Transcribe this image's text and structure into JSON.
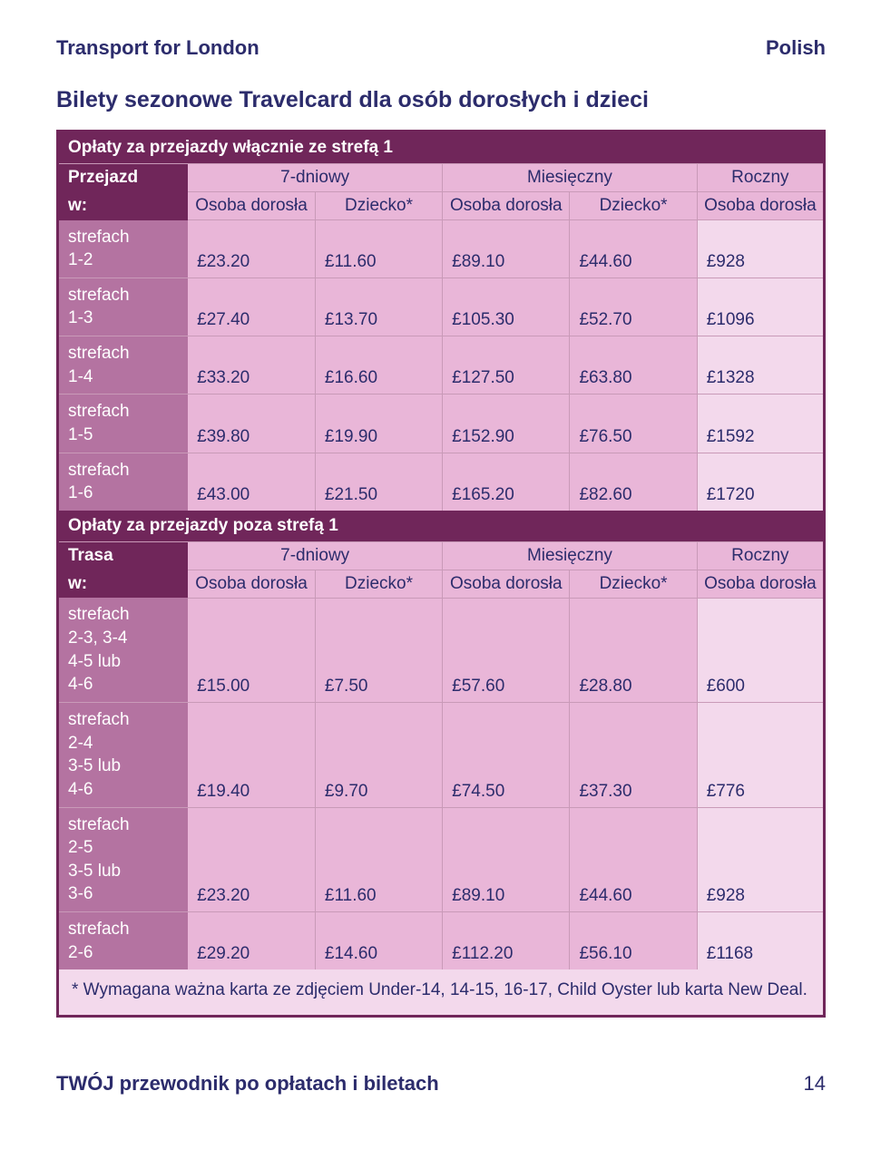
{
  "header": {
    "brand": "Transport for London",
    "lang": "Polish"
  },
  "title": "Bilety sezonowe Travelcard dla osób dorosłych i dzieci",
  "labels": {
    "zone_word": "strefach",
    "or_word": "lub"
  },
  "section1": {
    "banner": "Opłaty za przejazdy włącznie ze strefą 1",
    "rowhead1": "Przejazd",
    "rowhead2": "w:",
    "periods": [
      "7-dniowy",
      "Miesięczny",
      "Roczny"
    ],
    "subcols": [
      "Osoba dorosła",
      "Dziecko*",
      "Osoba dorosła",
      "Dziecko*",
      "Osoba dorosła"
    ],
    "rows": [
      {
        "zone": "1-2",
        "v": [
          "£23.20",
          "£11.60",
          "£89.10",
          "£44.60",
          "£928"
        ]
      },
      {
        "zone": "1-3",
        "v": [
          "£27.40",
          "£13.70",
          "£105.30",
          "£52.70",
          "£1096"
        ]
      },
      {
        "zone": "1-4",
        "v": [
          "£33.20",
          "£16.60",
          "£127.50",
          "£63.80",
          "£1328"
        ]
      },
      {
        "zone": "1-5",
        "v": [
          "£39.80",
          "£19.90",
          "£152.90",
          "£76.50",
          "£1592"
        ]
      },
      {
        "zone": "1-6",
        "v": [
          "£43.00",
          "£21.50",
          "£165.20",
          "£82.60",
          "£1720"
        ]
      }
    ]
  },
  "section2": {
    "banner": "Opłaty za przejazdy poza strefą 1",
    "rowhead1": "Trasa",
    "rowhead2": "w:",
    "periods": [
      "7-dniowy",
      "Miesięczny",
      "Roczny"
    ],
    "subcols": [
      "Osoba dorosła",
      "Dziecko*",
      "Osoba dorosła",
      "Dziecko*",
      "Osoba dorosła"
    ],
    "rows": [
      {
        "zone_lines": [
          "2-3, 3-4",
          "4-5 lub",
          "4-6"
        ],
        "v": [
          "£15.00",
          "£7.50",
          "£57.60",
          "£28.80",
          "£600"
        ]
      },
      {
        "zone_lines": [
          "2-4",
          "3-5 lub",
          "4-6"
        ],
        "v": [
          "£19.40",
          "£9.70",
          "£74.50",
          "£37.30",
          "£776"
        ]
      },
      {
        "zone_lines": [
          "2-5",
          "3-5 lub",
          "3-6"
        ],
        "v": [
          "£23.20",
          "£11.60",
          "£89.10",
          "£44.60",
          "£928"
        ]
      },
      {
        "zone_lines": [
          "2-6"
        ],
        "v": [
          "£29.20",
          "£14.60",
          "£112.20",
          "£56.10",
          "£1168"
        ]
      }
    ]
  },
  "footnote": "* Wymagana ważna karta ze zdjęciem Under-14, 14-15, 16-17, Child Oyster lub karta New Deal.",
  "footer": {
    "text": "TWÓJ przewodnik po opłatach i biletach",
    "page": "14"
  },
  "style": {
    "colors": {
      "brand_text": "#2c2c6c",
      "banner_bg": "#70265a",
      "zone_bg": "#b473a1",
      "cell_bg": "#e9b6d8",
      "cell_bg_pale": "#f3d9ec",
      "border": "#c99ab8",
      "white": "#ffffff"
    },
    "fontsizes": {
      "header": 22,
      "title": 25,
      "body": 19,
      "footer": 22
    }
  }
}
